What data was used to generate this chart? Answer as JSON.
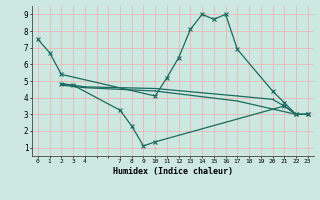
{
  "xlabel": "Humidex (Indice chaleur)",
  "background_color": "#cce8e0",
  "grid_color": "#e8b8b8",
  "line_color": "#1a6b60",
  "xlim": [
    -0.5,
    23.5
  ],
  "ylim": [
    0.5,
    9.5
  ],
  "xtick_positions": [
    0,
    1,
    2,
    3,
    4,
    5,
    6,
    7,
    8,
    9,
    10,
    11,
    12,
    13,
    14,
    15,
    16,
    17,
    18,
    19,
    20,
    21,
    22,
    23
  ],
  "xtick_labels": [
    "0",
    "1",
    "2",
    "3",
    "4",
    "",
    "",
    "7",
    "8",
    "9",
    "10",
    "11",
    "12",
    "13",
    "14",
    "15",
    "16",
    "17",
    "18",
    "19",
    "20",
    "21",
    "22",
    "23"
  ],
  "yticks": [
    1,
    2,
    3,
    4,
    5,
    6,
    7,
    8,
    9
  ],
  "series": [
    {
      "x": [
        0,
        1,
        2,
        10,
        11,
        12,
        13,
        14,
        15,
        16,
        17,
        20,
        21,
        22,
        23
      ],
      "y": [
        7.5,
        6.7,
        5.4,
        4.1,
        5.2,
        6.4,
        8.1,
        9.0,
        8.7,
        9.0,
        6.9,
        4.4,
        3.7,
        3.0,
        3.0
      ],
      "marker": true
    },
    {
      "x": [
        2,
        3,
        7,
        8,
        9,
        10,
        21,
        22,
        23
      ],
      "y": [
        4.8,
        4.75,
        3.25,
        2.3,
        1.1,
        1.35,
        3.5,
        3.0,
        3.0
      ],
      "marker": true
    },
    {
      "x": [
        2,
        4,
        10,
        17,
        20,
        21,
        22,
        23
      ],
      "y": [
        4.85,
        4.65,
        4.55,
        4.1,
        3.9,
        3.5,
        3.0,
        3.0
      ],
      "marker": false
    },
    {
      "x": [
        2,
        4,
        10,
        17,
        22,
        23
      ],
      "y": [
        4.75,
        4.6,
        4.4,
        3.8,
        3.0,
        3.0
      ],
      "marker": false
    }
  ]
}
